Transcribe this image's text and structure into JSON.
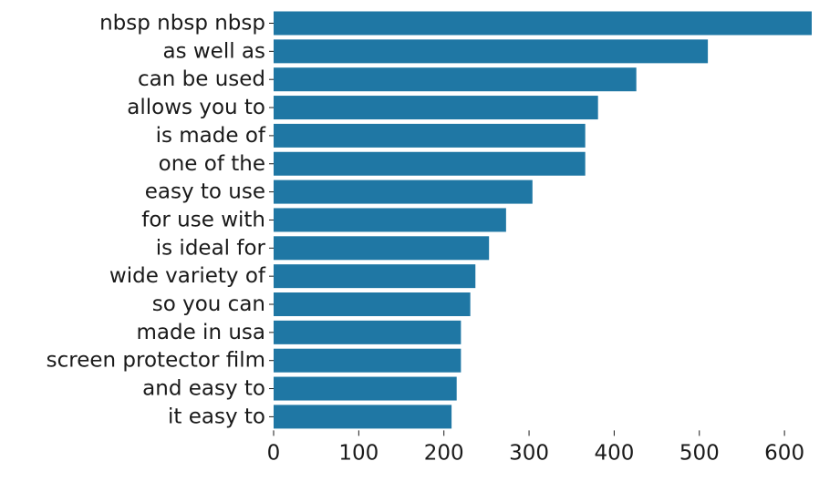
{
  "chart_data": {
    "type": "bar",
    "orientation": "horizontal",
    "categories": [
      "nbsp nbsp nbsp",
      "as well as",
      "can be used",
      "allows you to",
      "is made of",
      "one of the",
      "easy to use",
      "for use with",
      "is ideal for",
      "wide variety of",
      "so you can",
      "made in usa",
      "screen protector film",
      "and easy to",
      "it easy to"
    ],
    "values": [
      632,
      510,
      426,
      381,
      366,
      366,
      304,
      273,
      253,
      237,
      231,
      220,
      220,
      215,
      209
    ],
    "xticks": [
      0,
      100,
      200,
      300,
      400,
      500,
      600
    ],
    "xlim": [
      0,
      632
    ],
    "title": "",
    "xlabel": "",
    "ylabel": "",
    "grid": false,
    "legend": "none",
    "bar_color": "#1f77a4"
  }
}
